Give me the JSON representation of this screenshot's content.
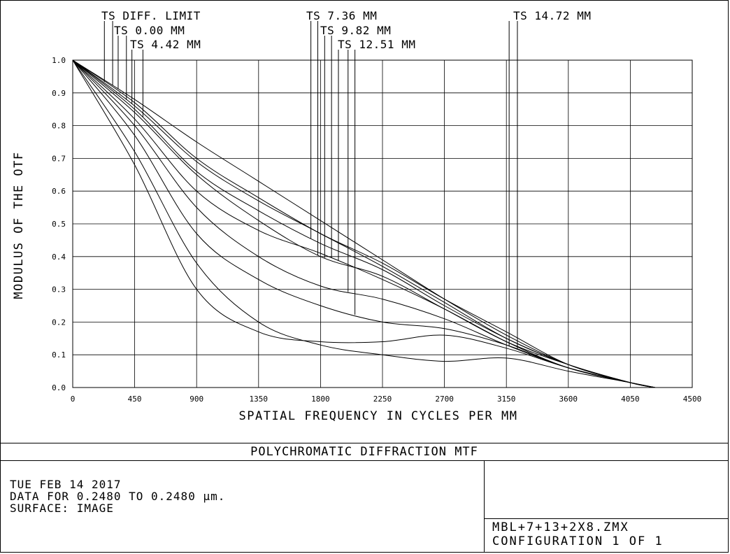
{
  "chart_data": {
    "type": "line",
    "title": "POLYCHROMATIC DIFFRACTION MTF",
    "xlabel": "SPATIAL FREQUENCY IN CYCLES PER MM",
    "ylabel": "MODULUS OF THE OTF",
    "xlim": [
      0,
      4500
    ],
    "ylim": [
      0,
      1.0
    ],
    "grid": true,
    "x_ticks": [
      "0",
      "450",
      "900",
      "1350",
      "1800",
      "2250",
      "2700",
      "3150",
      "3600",
      "4050",
      "4500"
    ],
    "y_ticks": [
      "0.0",
      "0.1",
      "0.2",
      "0.3",
      "0.4",
      "0.5",
      "0.6",
      "0.7",
      "0.8",
      "0.9",
      "1.0"
    ],
    "legend": [
      {
        "label": "TS DIFF. LIMIT",
        "x": [
          230,
          290
        ]
      },
      {
        "label": "TS 0.00 MM",
        "x": [
          330,
          390
        ]
      },
      {
        "label": "TS 4.42 MM",
        "x": [
          430,
          510
        ]
      },
      {
        "label": "TS 7.36 MM",
        "x": [
          1730,
          1780
        ]
      },
      {
        "label": "TS 9.82 MM",
        "x": [
          1830,
          1880
        ]
      },
      {
        "label": "TS 12.51 MM",
        "x": [
          1930,
          2000,
          2050
        ]
      },
      {
        "label": "TS 14.72 MM",
        "x": [
          3170,
          3230
        ]
      }
    ],
    "series": [
      {
        "x": [
          0,
          450,
          900,
          1350,
          1800,
          2250,
          2700,
          3150,
          3600,
          4050,
          4230
        ],
        "y": [
          1.0,
          0.87,
          0.7,
          0.58,
          0.47,
          0.38,
          0.27,
          0.17,
          0.07,
          0.015,
          0.0
        ]
      },
      {
        "x": [
          0,
          450,
          900,
          1350,
          1800,
          2250,
          2700,
          3150,
          3600,
          4050,
          4230
        ],
        "y": [
          1.0,
          0.88,
          0.75,
          0.63,
          0.51,
          0.39,
          0.27,
          0.16,
          0.07,
          0.015,
          0.0
        ]
      },
      {
        "x": [
          0,
          450,
          900,
          1350,
          1800,
          2250,
          2700,
          3150,
          3600,
          4050,
          4230
        ],
        "y": [
          1.0,
          0.86,
          0.69,
          0.57,
          0.47,
          0.37,
          0.26,
          0.15,
          0.07,
          0.015,
          0.0
        ]
      },
      {
        "x": [
          0,
          450,
          900,
          1350,
          1800,
          2250,
          2700,
          3150,
          3600,
          4050,
          4230
        ],
        "y": [
          1.0,
          0.85,
          0.66,
          0.54,
          0.44,
          0.36,
          0.25,
          0.15,
          0.07,
          0.015,
          0.0
        ]
      },
      {
        "x": [
          0,
          450,
          900,
          1350,
          1800,
          2250,
          2700,
          3150,
          3600,
          4050,
          4230
        ],
        "y": [
          1.0,
          0.84,
          0.65,
          0.51,
          0.4,
          0.34,
          0.24,
          0.14,
          0.07,
          0.015,
          0.0
        ]
      },
      {
        "x": [
          0,
          450,
          900,
          1350,
          1800,
          2250,
          2700,
          3150,
          3600,
          4050,
          4230
        ],
        "y": [
          1.0,
          0.82,
          0.6,
          0.48,
          0.41,
          0.33,
          0.24,
          0.14,
          0.06,
          0.015,
          0.0
        ]
      },
      {
        "x": [
          0,
          450,
          900,
          1350,
          1800,
          2250,
          2700,
          3150,
          3600,
          4050,
          4230
        ],
        "y": [
          1.0,
          0.8,
          0.55,
          0.4,
          0.31,
          0.27,
          0.21,
          0.13,
          0.06,
          0.015,
          0.0
        ]
      },
      {
        "x": [
          0,
          450,
          900,
          1350,
          1800,
          2250,
          2700,
          3150,
          3600,
          4050,
          4230
        ],
        "y": [
          1.0,
          0.77,
          0.47,
          0.33,
          0.25,
          0.2,
          0.18,
          0.13,
          0.06,
          0.015,
          0.0
        ]
      },
      {
        "x": [
          0,
          450,
          900,
          1350,
          1800,
          2250,
          2700,
          3150,
          3600,
          4050,
          4230
        ],
        "y": [
          1.0,
          0.72,
          0.38,
          0.2,
          0.13,
          0.1,
          0.08,
          0.09,
          0.05,
          0.015,
          0.0
        ]
      },
      {
        "x": [
          0,
          450,
          900,
          1350,
          1800,
          2250,
          2700,
          3150,
          3600,
          4050,
          4230
        ],
        "y": [
          1.0,
          0.68,
          0.3,
          0.17,
          0.14,
          0.14,
          0.16,
          0.12,
          0.06,
          0.015,
          0.0
        ]
      }
    ]
  },
  "footer": {
    "date": "TUE FEB 14 2017",
    "data_range": "DATA FOR 0.2480 TO 0.2480 µm.",
    "surface": "SURFACE: IMAGE",
    "file": "MBL+7+13+2X8.ZMX",
    "config": "CONFIGURATION 1 OF 1"
  }
}
